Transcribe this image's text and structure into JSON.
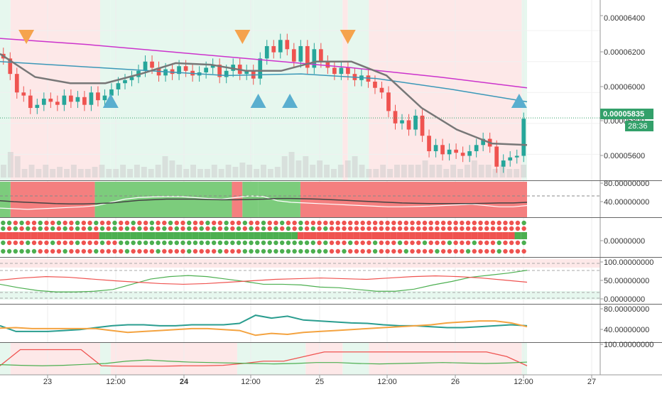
{
  "chart_data": {
    "type": "line",
    "title": "",
    "price_pane": {
      "ylim": [
        5.45e-05,
        6.58e-05
      ],
      "price_ticks": [
        "0.00006400",
        "0.00006200",
        "0.00006000",
        "0.00005800",
        "0.00005600"
      ],
      "last_price": "0.00005835",
      "countdown": "28:36",
      "candles_close": [
        6.22e-05,
        6.12e-05,
        6e-05,
        5.98e-05,
        5.9e-05,
        5.92e-05,
        5.96e-05,
        5.94e-05,
        5.92e-05,
        5.98e-05,
        5.94e-05,
        5.97e-05,
        5.92e-05,
        6e-05,
        5.95e-05,
        5.98e-05,
        6.02e-05,
        6.06e-05,
        6.08e-05,
        6.1e-05,
        6.14e-05,
        6.2e-05,
        6.16e-05,
        6.11e-05,
        6.15e-05,
        6.12e-05,
        6.17e-05,
        6.14e-05,
        6.11e-05,
        6.13e-05,
        6.16e-05,
        6.18e-05,
        6.1e-05,
        6.14e-05,
        6.18e-05,
        6.12e-05,
        6.14e-05,
        6.09e-05,
        6.22e-05,
        6.3e-05,
        6.26e-05,
        6.34e-05,
        6.28e-05,
        6.2e-05,
        6.3e-05,
        6.16e-05,
        6.28e-05,
        6.2e-05,
        6.16e-05,
        6.12e-05,
        6.16e-05,
        6.12e-05,
        6.08e-05,
        6.11e-05,
        6.07e-05,
        6.03e-05,
        6e-05,
        5.88e-05,
        5.8e-05,
        5.82e-05,
        5.76e-05,
        5.85e-05,
        5.72e-05,
        5.62e-05,
        5.66e-05,
        5.6e-05,
        5.63e-05,
        5.61e-05,
        5.59e-05,
        5.62e-05,
        5.66e-05,
        5.7e-05,
        5.65e-05,
        5.52e-05,
        5.56e-05,
        5.58e-05,
        5.59e-05,
        5.83e-05
      ],
      "indicators": [
        {
          "name": "MA slow",
          "color": "#cc33cc",
          "values": [
            6.35e-05,
            6.31e-05,
            6.26e-05,
            6.21e-05,
            6.16e-05,
            6.1e-05,
            6.03e-05
          ]
        },
        {
          "name": "MA mid",
          "color": "#3b98b8",
          "values": [
            6.2e-05,
            6.17e-05,
            6.14e-05,
            6.11e-05,
            6.12e-05,
            6.09e-05,
            6.02e-05,
            5.94e-05
          ]
        },
        {
          "name": "Baseline",
          "color": "#777777",
          "values": [
            6.25e-05,
            6.1e-05,
            6.06e-05,
            6.06e-05,
            6.12e-05,
            6.19e-05,
            6.18e-05,
            6.14e-05,
            6.14e-05,
            6.2e-05,
            6.2e-05,
            6.11e-05,
            5.9e-05,
            5.76e-05,
            5.67e-05,
            5.66e-05
          ]
        }
      ],
      "sell_signals": [
        {
          "x": 0.05
        },
        {
          "x": 0.46
        },
        {
          "x": 0.66
        }
      ],
      "buy_signals": [
        {
          "x": 0.21
        },
        {
          "x": 0.49
        },
        {
          "x": 0.55
        },
        {
          "x": 0.985
        }
      ],
      "volume_bars": [
        0.3,
        0.6,
        0.5,
        0.2,
        0.3,
        0.2,
        0.3,
        0.2,
        0.25,
        0.2,
        0.3,
        0.2,
        0.2,
        0.25,
        0.3,
        0.2,
        0.2,
        0.3,
        0.2,
        0.3,
        0.25,
        0.2,
        0.3,
        0.5,
        0.4,
        0.3,
        0.2,
        0.3,
        0.2,
        0.2,
        0.3,
        0.2,
        0.3,
        0.25,
        0.35,
        0.3,
        0.2,
        0.3,
        0.2,
        0.25,
        0.5,
        0.6,
        0.4,
        0.5,
        0.3,
        0.4,
        0.3,
        0.2,
        0.3,
        0.4,
        0.5,
        0.3,
        0.2,
        0.2,
        0.3,
        0.2,
        0.3,
        0.3,
        0.3,
        0.3,
        0.4,
        0.3,
        0.3,
        0.2,
        0.3,
        0.2,
        0.3,
        0.4,
        0.3,
        0.3,
        0.2,
        0.3,
        0.2,
        0.2,
        0.3
      ]
    },
    "pane2": {
      "ylim": [
        0,
        100
      ],
      "ticks": [
        "80.00000000",
        "40.00000000"
      ],
      "white_line": [
        22,
        20,
        18,
        20,
        22,
        24,
        26,
        30,
        40,
        50,
        55,
        57,
        58,
        58,
        55,
        52,
        50,
        55,
        60,
        58,
        45,
        40,
        38,
        36,
        34,
        32,
        30,
        28,
        26,
        26,
        27,
        28,
        30,
        32,
        34,
        30,
        26,
        26,
        30
      ],
      "dark_line": [
        45,
        42,
        40,
        38,
        36,
        35,
        35,
        36,
        38,
        42,
        46,
        48,
        50,
        50,
        50,
        49,
        48,
        48,
        49,
        50,
        52,
        52,
        51,
        50,
        48,
        46,
        44,
        42,
        40,
        38,
        37,
        36,
        36,
        36,
        36,
        37,
        38,
        38,
        40
      ]
    },
    "pane3": {
      "ticks": [
        "0.00000000"
      ]
    },
    "pane4": {
      "ylim": [
        -10,
        110
      ],
      "ticks": [
        "100.00000000",
        "50.00000000",
        "0.00000000"
      ],
      "green_line": [
        40,
        30,
        22,
        18,
        18,
        20,
        25,
        40,
        55,
        62,
        65,
        62,
        55,
        48,
        40,
        40,
        38,
        32,
        30,
        25,
        20,
        20,
        26,
        38,
        48,
        60,
        66,
        72,
        80
      ],
      "red_line": [
        52,
        58,
        62,
        60,
        55,
        50,
        46,
        42,
        40,
        42,
        46,
        50,
        54,
        56,
        58,
        56,
        54,
        58,
        62,
        64,
        62,
        58,
        52,
        46
      ]
    },
    "pane5": {
      "ylim": [
        20,
        90
      ],
      "ticks": [
        "80.00000000",
        "40.00000000"
      ],
      "green_line": [
        50,
        38,
        38,
        38,
        40,
        42,
        46,
        50,
        52,
        52,
        50,
        50,
        52,
        52,
        52,
        55,
        72,
        66,
        70,
        62,
        60,
        58,
        56,
        55,
        52,
        50,
        50,
        48,
        46,
        46,
        48,
        50,
        52,
        50
      ],
      "orange_line": [
        45,
        46,
        44,
        44,
        44,
        44,
        44,
        40,
        36,
        38,
        40,
        42,
        44,
        44,
        42,
        40,
        30,
        34,
        32,
        36,
        38,
        40,
        42,
        44,
        46,
        48,
        50,
        52,
        56,
        58,
        60,
        60,
        56,
        48
      ]
    },
    "pane6": {
      "ylim": [
        -10,
        110
      ],
      "ticks": [
        "100.00000000"
      ],
      "red_line": [
        20,
        90,
        90,
        90,
        90,
        20,
        18,
        18,
        18,
        20,
        20,
        22,
        30,
        40,
        40,
        60,
        80,
        80,
        80,
        80,
        80,
        80,
        80,
        80,
        80,
        60,
        20
      ],
      "green_line": [
        25,
        22,
        20,
        22,
        26,
        30,
        40,
        45,
        40,
        36,
        34,
        32,
        30,
        28,
        30,
        34,
        34,
        30,
        28,
        30,
        32,
        34,
        32,
        30,
        32,
        36
      ]
    },
    "x_axis": {
      "labels": [
        "23",
        "12:00",
        "24",
        "12:00",
        "25",
        "12:00",
        "26",
        "12:00",
        "27"
      ]
    }
  }
}
